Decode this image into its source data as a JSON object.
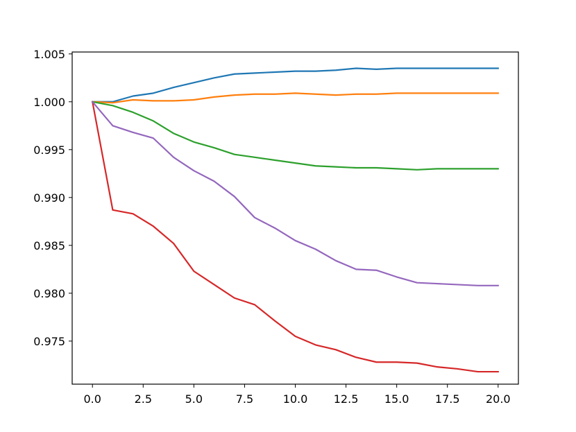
{
  "chart_data": {
    "type": "line",
    "title": "",
    "xlabel": "",
    "ylabel": "",
    "xlim": [
      -1.0,
      21.0
    ],
    "ylim": [
      0.9705,
      1.0052
    ],
    "grid": false,
    "legend": "none",
    "x_ticks": [
      {
        "value": 0.0,
        "label": "0.0"
      },
      {
        "value": 2.5,
        "label": "2.5"
      },
      {
        "value": 5.0,
        "label": "5.0"
      },
      {
        "value": 7.5,
        "label": "7.5"
      },
      {
        "value": 10.0,
        "label": "10.0"
      },
      {
        "value": 12.5,
        "label": "12.5"
      },
      {
        "value": 15.0,
        "label": "15.0"
      },
      {
        "value": 17.5,
        "label": "17.5"
      },
      {
        "value": 20.0,
        "label": "20.0"
      }
    ],
    "y_ticks": [
      {
        "value": 0.975,
        "label": "0.975"
      },
      {
        "value": 0.98,
        "label": "0.980"
      },
      {
        "value": 0.985,
        "label": "0.985"
      },
      {
        "value": 0.99,
        "label": "0.990"
      },
      {
        "value": 0.995,
        "label": "0.995"
      },
      {
        "value": 1.0,
        "label": "1.000"
      },
      {
        "value": 1.005,
        "label": "1.005"
      }
    ],
    "x": [
      0,
      1,
      2,
      3,
      4,
      5,
      6,
      7,
      8,
      9,
      10,
      11,
      12,
      13,
      14,
      15,
      16,
      17,
      18,
      19,
      20
    ],
    "series": [
      {
        "color": "#1f77b4",
        "values": [
          1.0,
          1.0,
          1.0006,
          1.0009,
          1.0015,
          1.002,
          1.0025,
          1.0029,
          1.003,
          1.0031,
          1.0032,
          1.0032,
          1.0033,
          1.0035,
          1.0034,
          1.0035,
          1.0035,
          1.0035,
          1.0035,
          1.0035,
          1.0035
        ]
      },
      {
        "color": "#ff7f0e",
        "values": [
          1.0,
          0.9999,
          1.0002,
          1.0001,
          1.0001,
          1.0002,
          1.0005,
          1.0007,
          1.0008,
          1.0008,
          1.0009,
          1.0008,
          1.0007,
          1.0008,
          1.0008,
          1.0009,
          1.0009,
          1.0009,
          1.0009,
          1.0009,
          1.0009
        ]
      },
      {
        "color": "#2ca02c",
        "values": [
          1.0,
          0.9996,
          0.9989,
          0.998,
          0.9967,
          0.9958,
          0.9952,
          0.9945,
          0.9942,
          0.9939,
          0.9936,
          0.9933,
          0.9932,
          0.9931,
          0.9931,
          0.993,
          0.9929,
          0.993,
          0.993,
          0.993,
          0.993
        ]
      },
      {
        "color": "#d62728",
        "values": [
          1.0,
          0.9887,
          0.9883,
          0.987,
          0.9852,
          0.9823,
          0.9809,
          0.9795,
          0.9788,
          0.9771,
          0.9755,
          0.9746,
          0.9741,
          0.9733,
          0.9728,
          0.9728,
          0.9727,
          0.9723,
          0.9721,
          0.9718,
          0.9718
        ]
      },
      {
        "color": "#9467bd",
        "values": [
          1.0,
          0.9975,
          0.9968,
          0.9962,
          0.9942,
          0.9928,
          0.9917,
          0.9901,
          0.9879,
          0.9868,
          0.9855,
          0.9846,
          0.9834,
          0.9825,
          0.9824,
          0.9817,
          0.9811,
          0.981,
          0.9809,
          0.9808,
          0.9808
        ]
      }
    ]
  }
}
